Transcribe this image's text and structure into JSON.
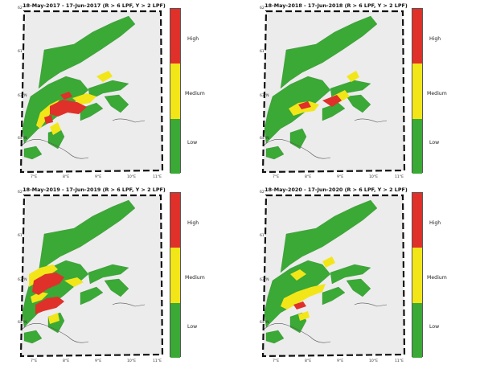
{
  "panels": [
    {
      "title": "18-May-2017  - 17-Jun-2017  (R > 6 LPF, Y > 2 LPF)",
      "variant": "p2017"
    },
    {
      "title": "18-May-2018  - 17-Jun-2018  (R > 6 LPF, Y > 2 LPF)",
      "variant": "p2018"
    },
    {
      "title": "18-May-2019  - 17-Jun-2019  (R > 6 LPF, Y > 2 LPF)",
      "variant": "p2019"
    },
    {
      "title": "18-May-2020  - 17-Jun-2020  (R > 6 LPF, Y > 2 LPF)",
      "variant": "p2020"
    }
  ],
  "legend": {
    "high": "High",
    "medium": "Medium",
    "low": "Low",
    "colors": {
      "high": "#e0302a",
      "medium": "#f2e619",
      "low": "#3aa935"
    }
  },
  "lat_labels": [
    "62°",
    "61°",
    "63°N",
    "64°N"
  ],
  "lon_labels": [
    "7°E",
    "8°E",
    "9°E",
    "10°E",
    "11°E"
  ],
  "colors": {
    "land": "#ececec",
    "sea": "#ffffff",
    "frame": "#111111",
    "coast": "#555555"
  }
}
